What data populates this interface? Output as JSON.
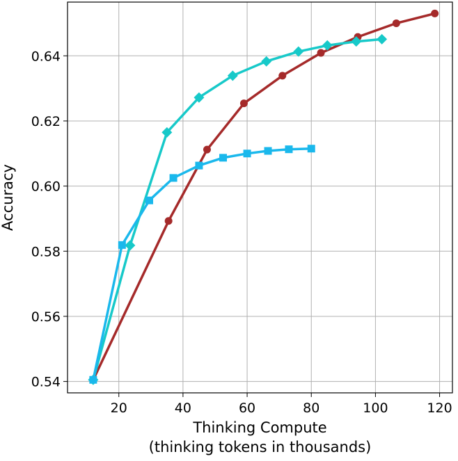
{
  "chart_data": {
    "type": "line",
    "title": "",
    "xlabel_lines": [
      "Thinking Compute",
      "(thinking tokens in thousands)"
    ],
    "ylabel": "Accuracy",
    "xlim": [
      4,
      124
    ],
    "ylim": [
      0.5365,
      0.6565
    ],
    "xticks": [
      20,
      40,
      60,
      80,
      100,
      120
    ],
    "yticks": [
      0.54,
      0.56,
      0.58,
      0.6,
      0.62,
      0.64
    ],
    "ytick_labels": [
      "0.54",
      "0.56",
      "0.58",
      "0.60",
      "0.62",
      "0.64"
    ],
    "grid": true,
    "legend": false,
    "series": [
      {
        "marker": "circle",
        "color": "#a52a2a",
        "x": [
          12,
          35.5,
          47.5,
          59,
          71,
          83,
          94.5,
          106.5,
          118.5
        ],
        "y": [
          0.5405,
          0.5893,
          0.6112,
          0.6254,
          0.6339,
          0.6409,
          0.6458,
          0.65,
          0.653
        ]
      },
      {
        "marker": "diamond",
        "color": "#17c9c9",
        "x": [
          12,
          23.5,
          35,
          45,
          55.5,
          66,
          76,
          85,
          94,
          102
        ],
        "y": [
          0.5405,
          0.5818,
          0.6165,
          0.6272,
          0.6339,
          0.6383,
          0.6413,
          0.6432,
          0.6444,
          0.6451
        ]
      },
      {
        "marker": "square",
        "color": "#1ab8ec",
        "x": [
          12,
          21,
          29.5,
          37,
          45,
          52.5,
          60,
          66.5,
          73,
          80
        ],
        "y": [
          0.5405,
          0.5819,
          0.5956,
          0.6025,
          0.6063,
          0.6087,
          0.61,
          0.6108,
          0.6113,
          0.6115
        ]
      }
    ]
  }
}
